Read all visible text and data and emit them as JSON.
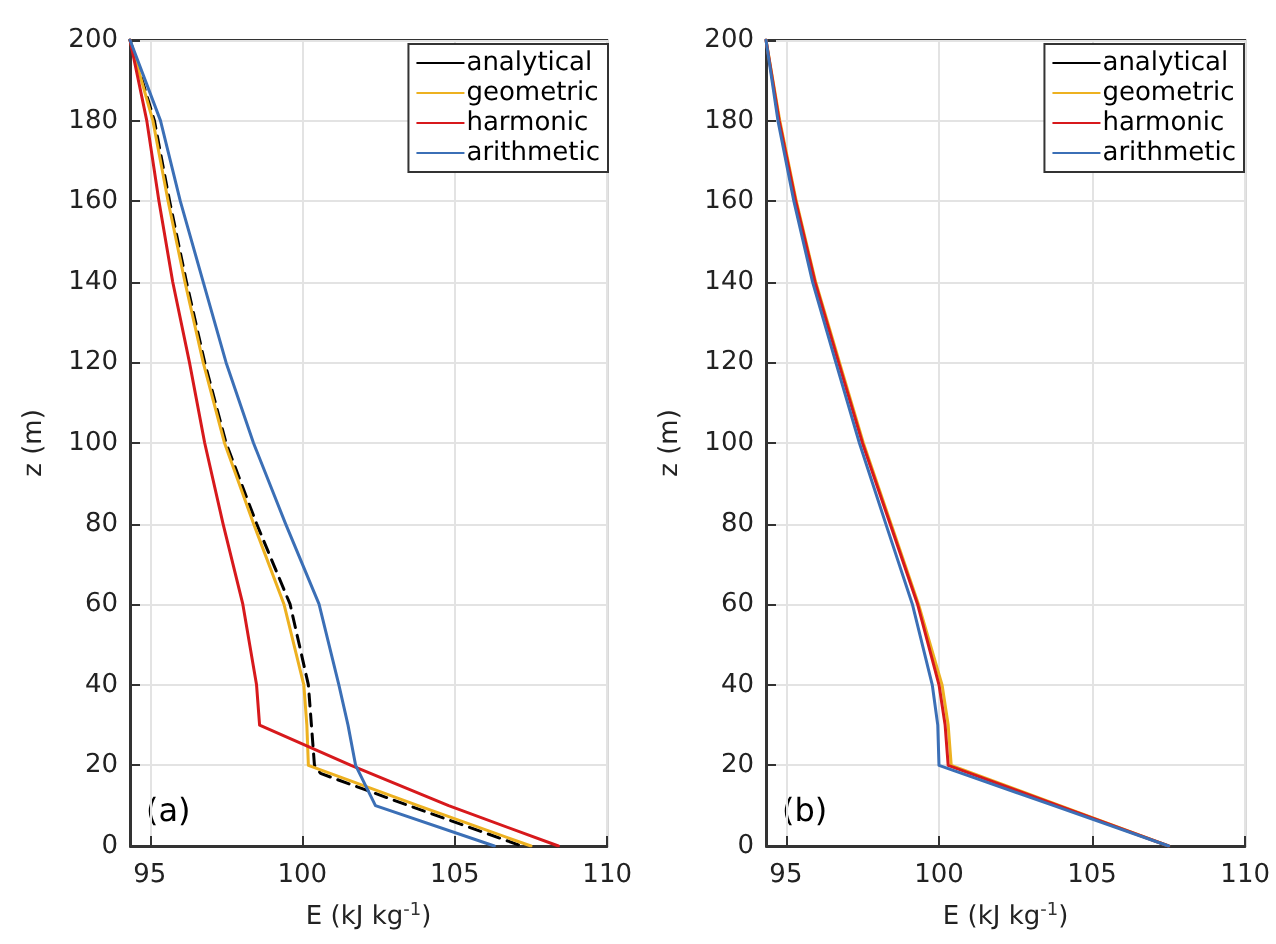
{
  "chart_data": [
    {
      "type": "line",
      "xlabel": "E (kJ kg$^{-1}$)",
      "ylabel": "z (m)",
      "annotations": [
        "(a)"
      ],
      "xlim": [
        94.35,
        110
      ],
      "xticks": [
        95,
        100,
        105,
        110
      ],
      "ylim": [
        0,
        200
      ],
      "yticks": [
        0,
        20,
        40,
        60,
        80,
        100,
        120,
        140,
        160,
        180,
        200
      ],
      "grid": true,
      "legend": "top right",
      "marker": "none",
      "series": [
        {
          "name": "analytical",
          "color": "#000000",
          "line_style": "dashed",
          "x": [
            94.35,
            95.15,
            95.65,
            96.2,
            96.8,
            97.5,
            98.5,
            99.6,
            100.2,
            100.3,
            100.4,
            100.6,
            103.5,
            107.2
          ],
          "values": [
            200,
            180,
            160,
            140,
            120,
            100,
            80,
            60,
            40,
            30,
            20,
            18,
            10,
            0
          ]
        },
        {
          "name": "geometric",
          "color": "#edb120",
          "line_style": "solid",
          "x": [
            94.35,
            95.1,
            95.6,
            96.15,
            96.75,
            97.45,
            98.4,
            99.4,
            100.05,
            100.15,
            100.2,
            103.8,
            107.5
          ],
          "values": [
            200,
            180,
            160,
            140,
            120,
            100,
            80,
            60,
            40,
            30,
            20,
            10,
            0
          ]
        },
        {
          "name": "harmonic",
          "color": "#d7191c",
          "line_style": "solid",
          "x": [
            94.35,
            94.9,
            95.3,
            95.75,
            96.3,
            96.8,
            97.4,
            98.05,
            98.5,
            98.6,
            101.6,
            104.8,
            108.4
          ],
          "values": [
            200,
            180,
            160,
            140,
            120,
            100,
            80,
            60,
            40,
            30,
            20,
            10,
            0
          ]
        },
        {
          "name": "arithmetic",
          "color": "#3b6fb6",
          "line_style": "solid",
          "x": [
            94.35,
            95.35,
            96.0,
            96.75,
            97.5,
            98.4,
            99.45,
            100.55,
            101.2,
            101.5,
            101.75,
            102.4,
            106.3
          ],
          "values": [
            200,
            180,
            160,
            140,
            120,
            100,
            80,
            60,
            40,
            30,
            20,
            10,
            0
          ]
        }
      ]
    },
    {
      "type": "line",
      "xlabel": "E (kJ kg$^{-1}$)",
      "ylabel": "z (m)",
      "annotations": [
        "(b)"
      ],
      "xlim": [
        94.35,
        110
      ],
      "xticks": [
        95,
        100,
        105,
        110
      ],
      "ylim": [
        0,
        200
      ],
      "yticks": [
        0,
        20,
        40,
        60,
        80,
        100,
        120,
        140,
        160,
        180,
        200
      ],
      "grid": true,
      "legend": "top right",
      "marker": "none",
      "series": [
        {
          "name": "analytical",
          "color": "#000000",
          "line_style": "dashed",
          "x": [
            null,
            null,
            null,
            null,
            null,
            null,
            null,
            null,
            null,
            null,
            null,
            null,
            null
          ],
          "values": [
            null,
            null,
            null,
            null,
            null,
            null,
            null,
            null,
            null,
            null,
            null,
            null,
            null
          ]
        },
        {
          "name": "geometric",
          "color": "#edb120",
          "line_style": "solid",
          "x": [
            94.35,
            94.8,
            95.34,
            95.97,
            96.75,
            97.53,
            98.43,
            99.33,
            100.1,
            100.3,
            100.4,
            103.95,
            107.5
          ],
          "values": [
            200,
            180,
            160,
            140,
            120,
            100,
            80,
            60,
            40,
            30,
            20,
            10,
            0
          ]
        },
        {
          "name": "harmonic",
          "color": "#d7191c",
          "line_style": "solid",
          "x": [
            94.35,
            94.78,
            95.32,
            95.95,
            96.72,
            97.5,
            98.4,
            99.3,
            100.0,
            100.2,
            100.3,
            103.9,
            107.5
          ],
          "values": [
            200,
            180,
            160,
            140,
            120,
            100,
            80,
            60,
            40,
            30,
            20,
            10,
            0
          ]
        },
        {
          "name": "arithmetic",
          "color": "#3b6fb6",
          "line_style": "solid",
          "x": [
            94.35,
            94.74,
            95.26,
            95.87,
            96.63,
            97.4,
            98.26,
            99.13,
            99.78,
            99.96,
            100.0,
            103.75,
            107.5
          ],
          "values": [
            200,
            180,
            160,
            140,
            120,
            100,
            80,
            60,
            40,
            30,
            20,
            10,
            0
          ]
        }
      ]
    }
  ]
}
